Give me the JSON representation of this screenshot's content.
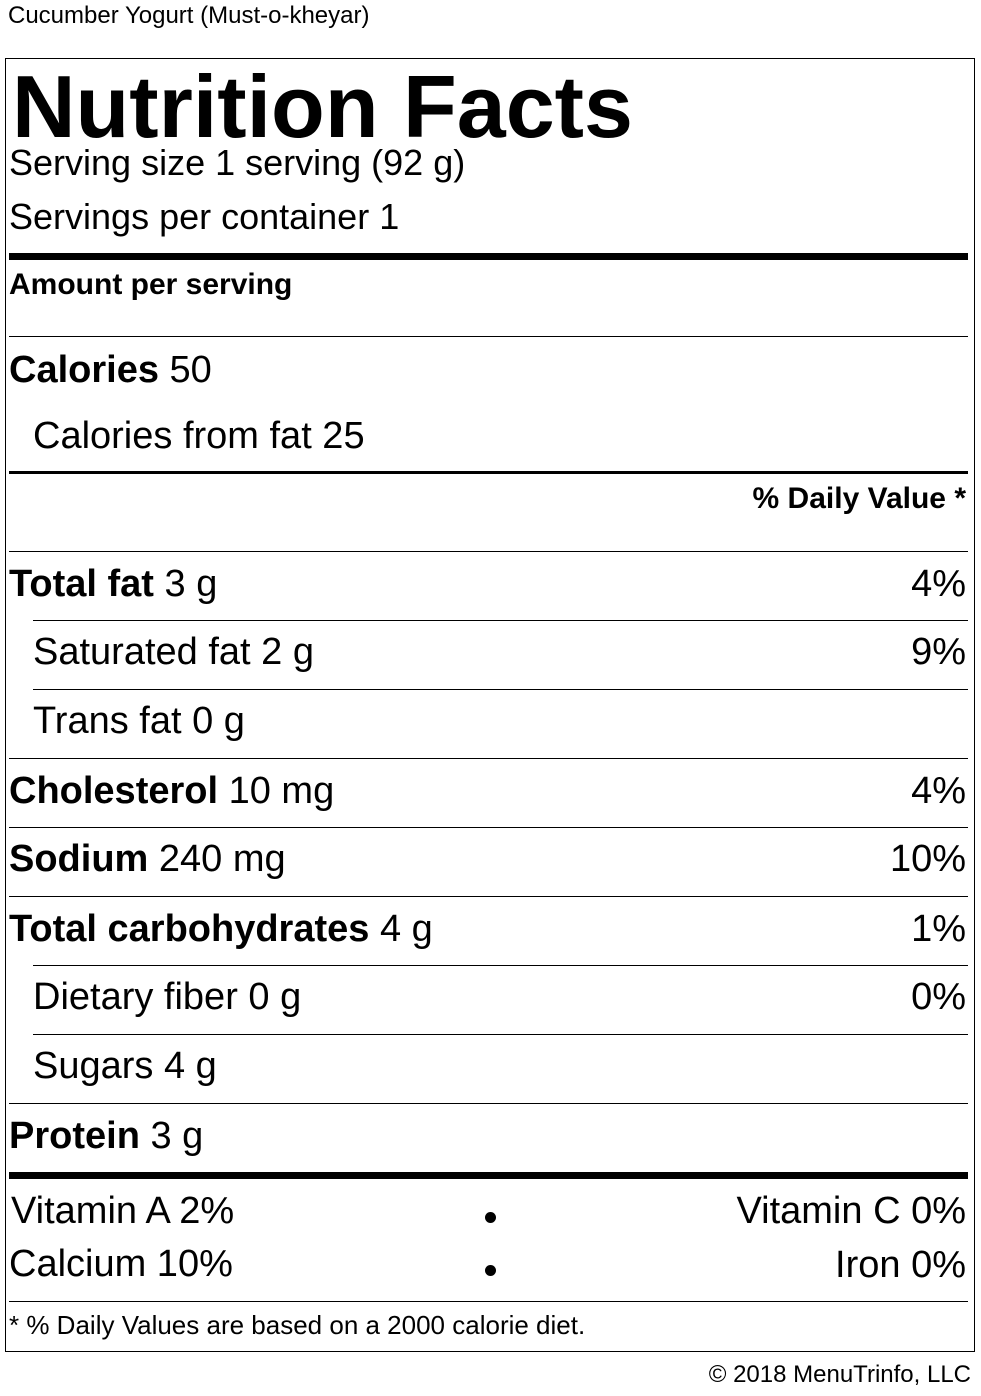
{
  "product_name": "Cucumber Yogurt (Must-o-kheyar)",
  "label": {
    "title": "Nutrition Facts",
    "serving_size": "Serving size 1 serving (92 g)",
    "servings_per_container": "Servings per container 1",
    "amount_per_serving": "Amount per serving",
    "calories_label": "Calories",
    "calories_value": "50",
    "calories_from_fat": "Calories from fat 25",
    "daily_value_header": "% Daily Value *",
    "nutrients": [
      {
        "name": "Total fat",
        "amount": "3 g",
        "dv": "4%"
      },
      {
        "name": "Saturated fat",
        "amount": "2 g",
        "dv": "9%"
      },
      {
        "name": "Trans fat",
        "amount": "0 g",
        "dv": ""
      },
      {
        "name": "Cholesterol",
        "amount": "10 mg",
        "dv": "4%"
      },
      {
        "name": "Sodium",
        "amount": "240 mg",
        "dv": "10%"
      },
      {
        "name": "Total carbohydrates",
        "amount": "4 g",
        "dv": "1%"
      },
      {
        "name": "Dietary fiber",
        "amount": "0 g",
        "dv": "0%"
      },
      {
        "name": "Sugars",
        "amount": "4 g",
        "dv": ""
      },
      {
        "name": "Protein",
        "amount": "3 g",
        "dv": ""
      }
    ],
    "vitamins": {
      "vitamin_a": "Vitamin A 2%",
      "vitamin_c": "Vitamin C 0%",
      "calcium": "Calcium 10%",
      "iron": "Iron 0%"
    },
    "footnote": "* % Daily Values are based on a 2000 calorie diet."
  },
  "copyright": "© 2018 MenuTrinfo, LLC"
}
